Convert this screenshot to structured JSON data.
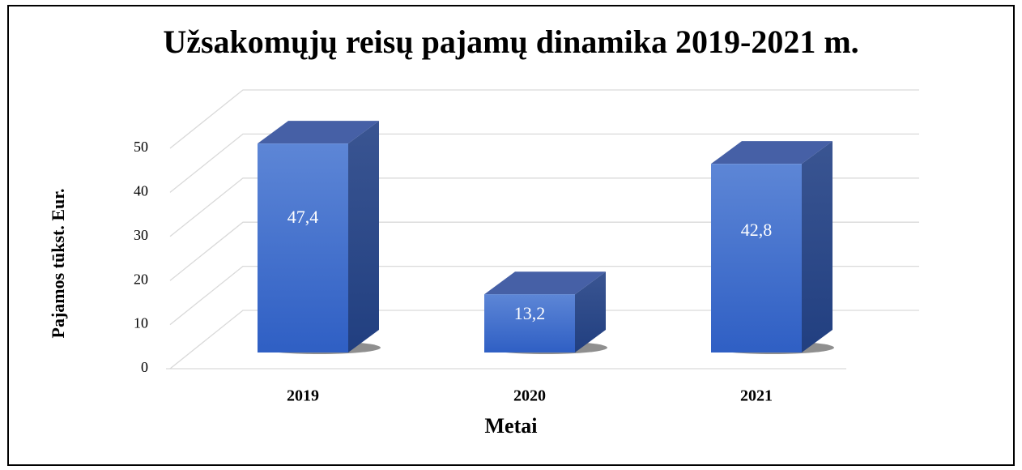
{
  "chart_data": {
    "type": "bar3d",
    "title": "Užsakomųjų reisų pajamų dinamika 2019-2021 m.",
    "x_label": "Metai",
    "y_label": "Pajamos tūkst. Eur.",
    "categories": [
      "2019",
      "2020",
      "2021"
    ],
    "values": [
      47.4,
      13.2,
      42.8
    ],
    "value_labels": [
      "47,4",
      "13,2",
      "42,8"
    ],
    "color": "#4472c4",
    "ylim": [
      0,
      50
    ],
    "yticks": [
      0,
      10,
      20,
      30,
      40,
      50
    ],
    "grid": true
  }
}
